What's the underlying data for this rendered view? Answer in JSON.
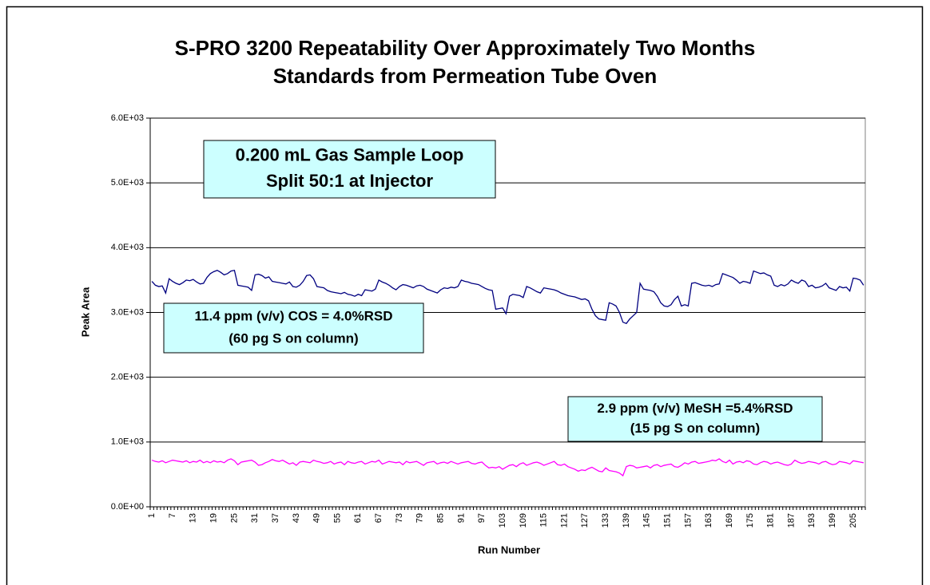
{
  "chart_data": {
    "type": "line",
    "title": [
      "S-PRO 3200 Repeatability Over Approximately Two Months",
      "Standards from Permeation Tube Oven"
    ],
    "x_label": "Run Number",
    "y_label": "Peak Area",
    "categories": [
      1,
      null,
      null,
      null,
      null,
      null,
      7,
      null,
      null,
      null,
      null,
      null,
      13,
      null,
      null,
      null,
      null,
      null,
      19,
      null,
      null,
      null,
      null,
      null,
      25,
      null,
      null,
      null,
      null,
      null,
      31,
      null,
      null,
      null,
      null,
      null,
      37,
      null,
      null,
      null,
      null,
      null,
      43,
      null,
      null,
      null,
      null,
      null,
      49,
      null,
      null,
      null,
      null,
      null,
      55,
      null,
      null,
      null,
      null,
      null,
      61,
      null,
      null,
      null,
      null,
      null,
      67,
      null,
      null,
      null,
      null,
      null,
      73,
      null,
      null,
      null,
      null,
      null,
      79,
      null,
      null,
      null,
      null,
      null,
      85,
      null,
      null,
      null,
      null,
      null,
      91,
      null,
      null,
      null,
      null,
      null,
      97,
      null,
      null,
      null,
      null,
      null,
      103,
      null,
      null,
      null,
      null,
      null,
      109,
      null,
      null,
      null,
      null,
      null,
      115,
      null,
      null,
      null,
      null,
      null,
      121,
      null,
      null,
      null,
      null,
      null,
      127,
      null,
      null,
      null,
      null,
      null,
      133,
      null,
      null,
      null,
      null,
      null,
      139,
      null,
      null,
      null,
      null,
      null,
      145,
      null,
      null,
      null,
      null,
      null,
      151,
      null,
      null,
      null,
      null,
      null,
      157,
      null,
      null,
      null,
      null,
      null,
      163,
      null,
      null,
      null,
      null,
      null,
      169,
      null,
      null,
      null,
      null,
      null,
      175,
      null,
      null,
      null,
      null,
      null,
      181,
      null,
      null,
      null,
      null,
      null,
      187,
      null,
      null,
      null,
      null,
      null,
      193,
      null,
      null,
      null,
      null,
      null,
      199,
      null,
      null,
      null,
      null,
      null,
      205,
      null,
      null,
      null
    ],
    "series": [
      {
        "name": "COS",
        "color": "#000080",
        "values": [
          3480,
          3420,
          3400,
          3410,
          3300,
          3520,
          3480,
          3450,
          3430,
          3460,
          3500,
          3490,
          3510,
          3470,
          3440,
          3450,
          3540,
          3600,
          3630,
          3650,
          3620,
          3580,
          3600,
          3640,
          3650,
          3420,
          3410,
          3400,
          3390,
          3340,
          3580,
          3590,
          3570,
          3530,
          3550,
          3480,
          3470,
          3460,
          3450,
          3440,
          3470,
          3400,
          3390,
          3420,
          3480,
          3570,
          3580,
          3520,
          3400,
          3390,
          3380,
          3340,
          3320,
          3310,
          3300,
          3290,
          3310,
          3280,
          3270,
          3250,
          3280,
          3260,
          3350,
          3340,
          3330,
          3360,
          3500,
          3470,
          3450,
          3420,
          3380,
          3350,
          3400,
          3430,
          3420,
          3400,
          3380,
          3410,
          3420,
          3400,
          3360,
          3340,
          3320,
          3300,
          3350,
          3380,
          3370,
          3390,
          3380,
          3400,
          3500,
          3480,
          3470,
          3450,
          3440,
          3430,
          3400,
          3370,
          3350,
          3340,
          3050,
          3060,
          3070,
          2980,
          3250,
          3280,
          3270,
          3260,
          3230,
          3400,
          3380,
          3350,
          3320,
          3300,
          3380,
          3370,
          3360,
          3350,
          3330,
          3300,
          3280,
          3260,
          3250,
          3240,
          3220,
          3200,
          3210,
          3180,
          3050,
          2950,
          2900,
          2890,
          2880,
          3150,
          3130,
          3100,
          3000,
          2850,
          2830,
          2900,
          2950,
          3000,
          3450,
          3360,
          3350,
          3340,
          3320,
          3250,
          3150,
          3100,
          3090,
          3120,
          3200,
          3250,
          3100,
          3120,
          3100,
          3450,
          3460,
          3440,
          3420,
          3410,
          3420,
          3400,
          3430,
          3440,
          3600,
          3580,
          3560,
          3540,
          3500,
          3450,
          3480,
          3470,
          3450,
          3640,
          3620,
          3600,
          3610,
          3580,
          3560,
          3420,
          3400,
          3430,
          3410,
          3440,
          3500,
          3470,
          3450,
          3500,
          3480,
          3400,
          3420,
          3380,
          3390,
          3410,
          3450,
          3380,
          3360,
          3340,
          3400,
          3380,
          3390,
          3330,
          3530,
          3520,
          3500,
          3420
        ]
      },
      {
        "name": "MeSH",
        "color": "#ff00ff",
        "values": [
          720,
          700,
          690,
          710,
          680,
          700,
          720,
          710,
          700,
          690,
          710,
          680,
          700,
          690,
          720,
          680,
          700,
          680,
          710,
          690,
          700,
          680,
          720,
          740,
          710,
          650,
          690,
          700,
          710,
          720,
          690,
          640,
          650,
          680,
          700,
          730,
          710,
          700,
          720,
          690,
          660,
          680,
          640,
          690,
          700,
          690,
          680,
          720,
          700,
          690,
          670,
          680,
          700,
          660,
          680,
          690,
          650,
          700,
          680,
          670,
          690,
          700,
          660,
          680,
          700,
          690,
          720,
          660,
          680,
          700,
          690,
          680,
          690,
          650,
          700,
          680,
          690,
          700,
          670,
          640,
          680,
          690,
          700,
          660,
          680,
          690,
          670,
          700,
          680,
          660,
          680,
          690,
          700,
          670,
          660,
          680,
          690,
          640,
          600,
          610,
          600,
          620,
          580,
          610,
          640,
          650,
          620,
          660,
          680,
          640,
          660,
          680,
          690,
          670,
          640,
          660,
          680,
          700,
          650,
          640,
          660,
          620,
          600,
          580,
          550,
          570,
          560,
          590,
          610,
          580,
          550,
          540,
          600,
          560,
          550,
          540,
          520,
          480,
          620,
          640,
          630,
          600,
          610,
          620,
          630,
          600,
          640,
          650,
          620,
          640,
          650,
          660,
          620,
          610,
          640,
          680,
          660,
          690,
          700,
          670,
          680,
          690,
          700,
          720,
          710,
          740,
          700,
          680,
          720,
          660,
          690,
          700,
          680,
          710,
          700,
          660,
          650,
          680,
          700,
          690,
          660,
          680,
          690,
          670,
          650,
          640,
          660,
          720,
          690,
          670,
          680,
          700,
          690,
          680,
          660,
          690,
          700,
          670,
          650,
          660,
          700,
          690,
          680,
          660,
          710,
          700,
          690,
          680
        ]
      }
    ],
    "ylim": [
      0,
      6000
    ],
    "yticks": [
      {
        "value": 0,
        "label": "0.0E+00"
      },
      {
        "value": 1000,
        "label": "1.0E+03"
      },
      {
        "value": 2000,
        "label": "2.0E+03"
      },
      {
        "value": 3000,
        "label": "3.0E+03"
      },
      {
        "value": 4000,
        "label": "4.0E+03"
      },
      {
        "value": 5000,
        "label": "5.0E+03"
      },
      {
        "value": 6000,
        "label": "6.0E+03"
      }
    ],
    "grid": true,
    "annotations": [
      {
        "lines": [
          "0.200 mL Gas Sample Loop",
          "Split 50:1 at Injector"
        ]
      },
      {
        "lines": [
          "11.4 ppm (v/v) COS  = 4.0%RSD",
          "(60 pg S on column)"
        ]
      },
      {
        "lines": [
          "2.9 ppm (v/v) MeSH  =5.4%RSD",
          "(15 pg S on column)"
        ]
      }
    ]
  }
}
